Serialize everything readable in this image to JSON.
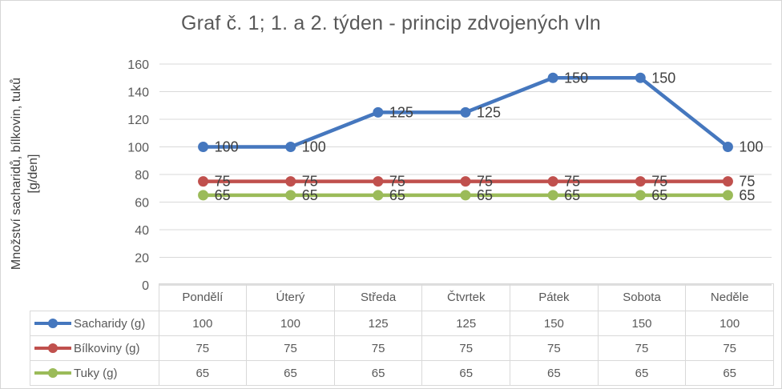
{
  "chart_data": {
    "type": "line",
    "title": "Graf č. 1; 1. a 2. týden - princip zdvojených vln",
    "ylabel": "Množství sacharidů, bílkovin, tuků [g/den]",
    "ylabel_lines": [
      "Množství sacharidů, bílkovin, tuků",
      "[g/den]"
    ],
    "xlabel": "",
    "categories": [
      "Pondělí",
      "Úterý",
      "Středa",
      "Čtvrtek",
      "Pátek",
      "Sobota",
      "Neděle"
    ],
    "series": [
      {
        "name": "Sacharidy (g)",
        "color": "#4577be",
        "values": [
          100,
          100,
          125,
          125,
          150,
          150,
          100
        ]
      },
      {
        "name": "Bílkoviny (g)",
        "color": "#c0504d",
        "values": [
          75,
          75,
          75,
          75,
          75,
          75,
          75
        ]
      },
      {
        "name": "Tuky (g)",
        "color": "#9bbb59",
        "values": [
          65,
          65,
          65,
          65,
          65,
          65,
          65
        ]
      }
    ],
    "ylim": [
      0,
      160
    ],
    "yticks": [
      0,
      20,
      40,
      60,
      80,
      100,
      120,
      140,
      160
    ],
    "grid": true,
    "data_labels": true,
    "legend_position": "data-table-left",
    "gridline_color": "#d9d9d9",
    "axis_line_color": "#bfbfbf",
    "text_color": "#595959",
    "label_color": "#404040"
  }
}
